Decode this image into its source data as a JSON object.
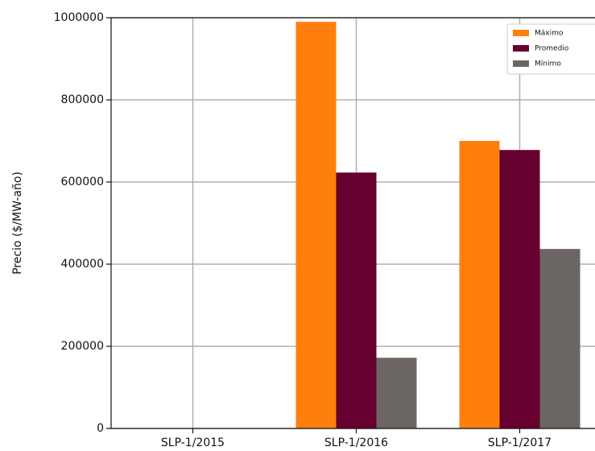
{
  "chart_data": {
    "type": "bar",
    "ylabel": "Precio ($/MW-año)",
    "categories": [
      "SLP-1/2015",
      "SLP-1/2016",
      "SLP-1/2017"
    ],
    "series": [
      {
        "name": "Máximo",
        "color": "#ff7f0e",
        "values": [
          0,
          990000,
          700000
        ]
      },
      {
        "name": "Promedio",
        "color": "#65002f",
        "values": [
          0,
          623000,
          678000
        ]
      },
      {
        "name": "Mínimo",
        "color": "#6b6663",
        "values": [
          0,
          172000,
          437000
        ]
      }
    ],
    "ylim": [
      0,
      1000000
    ],
    "yticks": [
      0,
      200000,
      400000,
      600000,
      800000,
      1000000
    ],
    "grid": true,
    "legend": "upper right"
  }
}
